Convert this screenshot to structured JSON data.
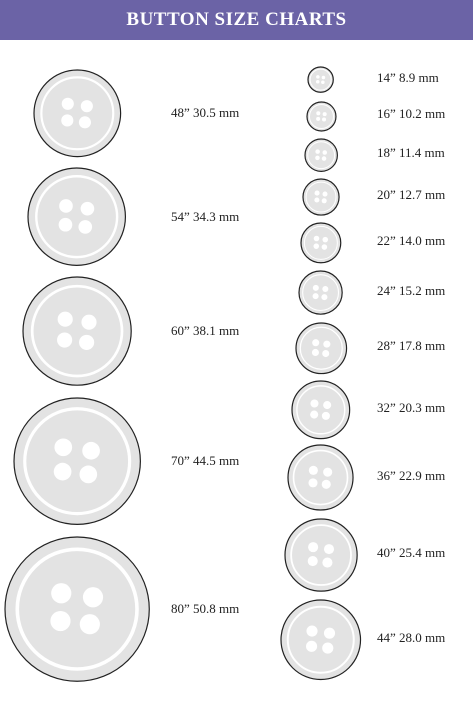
{
  "header": {
    "title": "BUTTON SIZE CHARTS"
  },
  "colors": {
    "header_bg": "#6b63a6",
    "button_fill": "#e3e3e3",
    "button_ring": "#ffffff",
    "button_outline": "#222222"
  },
  "buttons_left": [
    {
      "label": "48” 30.5 mm",
      "ligne": 48,
      "mm": 30.5
    },
    {
      "label": "54” 34.3 mm",
      "ligne": 54,
      "mm": 34.3
    },
    {
      "label": "60” 38.1 mm",
      "ligne": 60,
      "mm": 38.1
    },
    {
      "label": "70” 44.5 mm",
      "ligne": 70,
      "mm": 44.5
    },
    {
      "label": "80” 50.8 mm",
      "ligne": 80,
      "mm": 50.8
    }
  ],
  "buttons_right": [
    {
      "label": "14” 8.9 mm",
      "ligne": 14,
      "mm": 8.9
    },
    {
      "label": "16” 10.2 mm",
      "ligne": 16,
      "mm": 10.2
    },
    {
      "label": "18” 11.4 mm",
      "ligne": 18,
      "mm": 11.4
    },
    {
      "label": "20” 12.7 mm",
      "ligne": 20,
      "mm": 12.7
    },
    {
      "label": "22” 14.0 mm",
      "ligne": 22,
      "mm": 14.0
    },
    {
      "label": "24” 15.2 mm",
      "ligne": 24,
      "mm": 15.2
    },
    {
      "label": "28” 17.8 mm",
      "ligne": 28,
      "mm": 17.8
    },
    {
      "label": "32” 20.3 mm",
      "ligne": 32,
      "mm": 20.3
    },
    {
      "label": "36” 22.9 mm",
      "ligne": 36,
      "mm": 22.9
    },
    {
      "label": "40” 25.4 mm",
      "ligne": 40,
      "mm": 25.4
    },
    {
      "label": "44” 28.0 mm",
      "ligne": 44,
      "mm": 28.0
    }
  ]
}
